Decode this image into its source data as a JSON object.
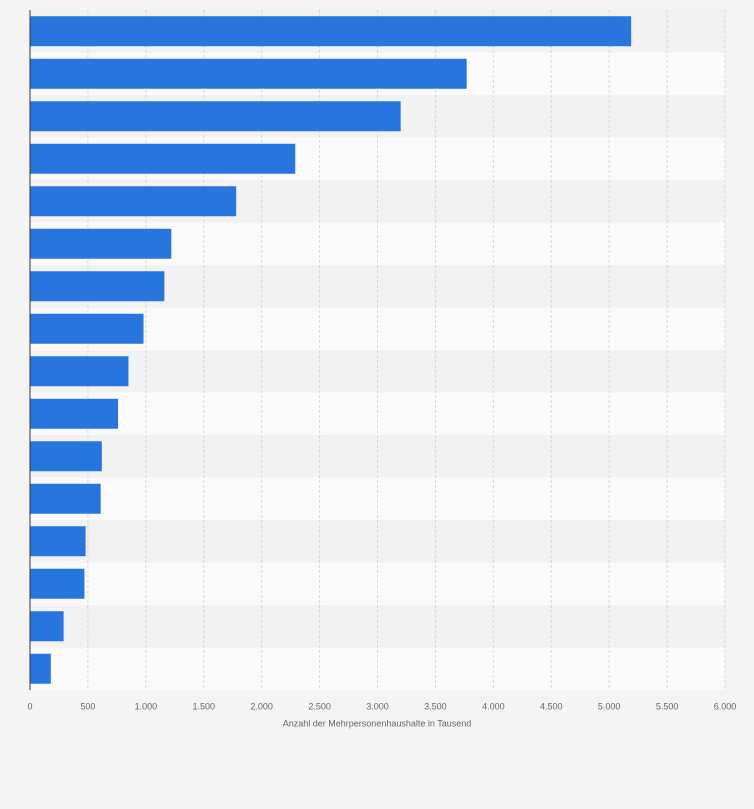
{
  "chart_data": {
    "type": "barh",
    "x_label": "Anzahl der Mehrpersonenhaushalte in Tausend",
    "categories": [
      null,
      null,
      null,
      null,
      null,
      null,
      null,
      null,
      null,
      null,
      null,
      null,
      null,
      null,
      null,
      null
    ],
    "values": [
      5190,
      3770,
      3200,
      2290,
      1780,
      1220,
      1160,
      980,
      850,
      760,
      620,
      610,
      480,
      470,
      290,
      180
    ],
    "color": "#2876dd",
    "xlim": [
      0,
      6000
    ],
    "xticks": [
      0,
      500,
      {
        "value": 1000,
        "label": "1.000"
      },
      {
        "value": 1500,
        "label": "1.500"
      },
      {
        "value": 2000,
        "label": "2.000"
      },
      {
        "value": 2500,
        "label": "2.500"
      },
      {
        "value": 3000,
        "label": "3.000"
      },
      {
        "value": 3500,
        "label": "3.500"
      },
      {
        "value": 4000,
        "label": "4.000"
      },
      {
        "value": 4500,
        "label": "4.500"
      },
      {
        "value": 5000,
        "label": "5.000"
      },
      {
        "value": 5500,
        "label": "5.500"
      },
      {
        "value": 6000,
        "label": "6.000"
      }
    ],
    "grid": true
  }
}
